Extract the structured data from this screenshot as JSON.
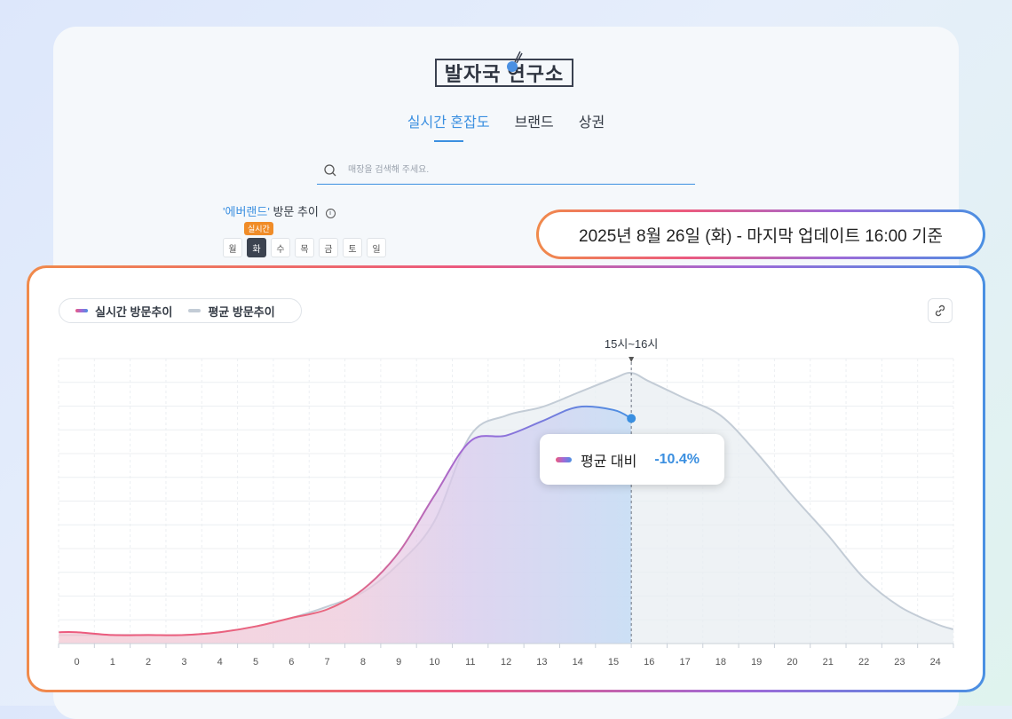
{
  "app": {
    "logo_text": "발자국 연구소"
  },
  "nav": {
    "tabs": [
      "실시간 혼잡도",
      "브랜드",
      "상권"
    ],
    "active_index": 0
  },
  "search": {
    "placeholder": "매장을 검색해 주세요."
  },
  "trend": {
    "brand": "'에버랜드'",
    "title": "방문 추이",
    "realtime_badge": "실시간",
    "days": [
      "월",
      "화",
      "수",
      "목",
      "금",
      "토",
      "일"
    ],
    "active_day_index": 1
  },
  "date_label": "2025년 8월 26일 (화) - 마지막 업데이트 16:00 기준",
  "legend": {
    "realtime": "실시간 방문추이",
    "average": "평균 방문추이"
  },
  "tooltip": {
    "label": "평균 대비",
    "value": "-10.4%"
  },
  "colors": {
    "accent": "#3b8fe0",
    "realtime_start": "#ec5a7e",
    "realtime_mid": "#9e6ad8",
    "realtime_end": "#4a90e2",
    "average": "#c3ccd6"
  },
  "chart_data": {
    "type": "area",
    "x_ticks": [
      "0",
      "1",
      "2",
      "3",
      "4",
      "5",
      "6",
      "7",
      "8",
      "9",
      "10",
      "11",
      "12",
      "13",
      "14",
      "15",
      "16",
      "17",
      "18",
      "19",
      "20",
      "21",
      "22",
      "23",
      "24"
    ],
    "current_marker_label": "15시~16시",
    "current_marker_x": 15.5,
    "ylim": [
      0,
      100
    ],
    "series": [
      {
        "name": "평균 방문추이",
        "x": [
          -0.5,
          0,
          1,
          2,
          3,
          4,
          5,
          6,
          7,
          8,
          9,
          10,
          11,
          12,
          13,
          14,
          15,
          15.5,
          16,
          17,
          18,
          19,
          20,
          21,
          22,
          23,
          24,
          24.5
        ],
        "values": [
          3,
          3,
          3,
          3,
          3,
          4,
          6,
          9,
          13,
          18,
          28,
          43,
          73,
          80,
          83,
          88,
          93,
          95,
          92,
          86,
          80,
          67,
          52,
          38,
          23,
          13,
          7,
          5
        ]
      },
      {
        "name": "실시간 방문추이",
        "x": [
          -0.5,
          0,
          1,
          2,
          3,
          4,
          5,
          6,
          7,
          8,
          9,
          10,
          11,
          12,
          13,
          14,
          15,
          15.5
        ],
        "values": [
          4,
          4,
          3,
          3,
          3,
          4,
          6,
          9,
          12,
          19,
          32,
          52,
          71,
          73,
          78,
          83,
          82,
          79
        ]
      }
    ]
  }
}
